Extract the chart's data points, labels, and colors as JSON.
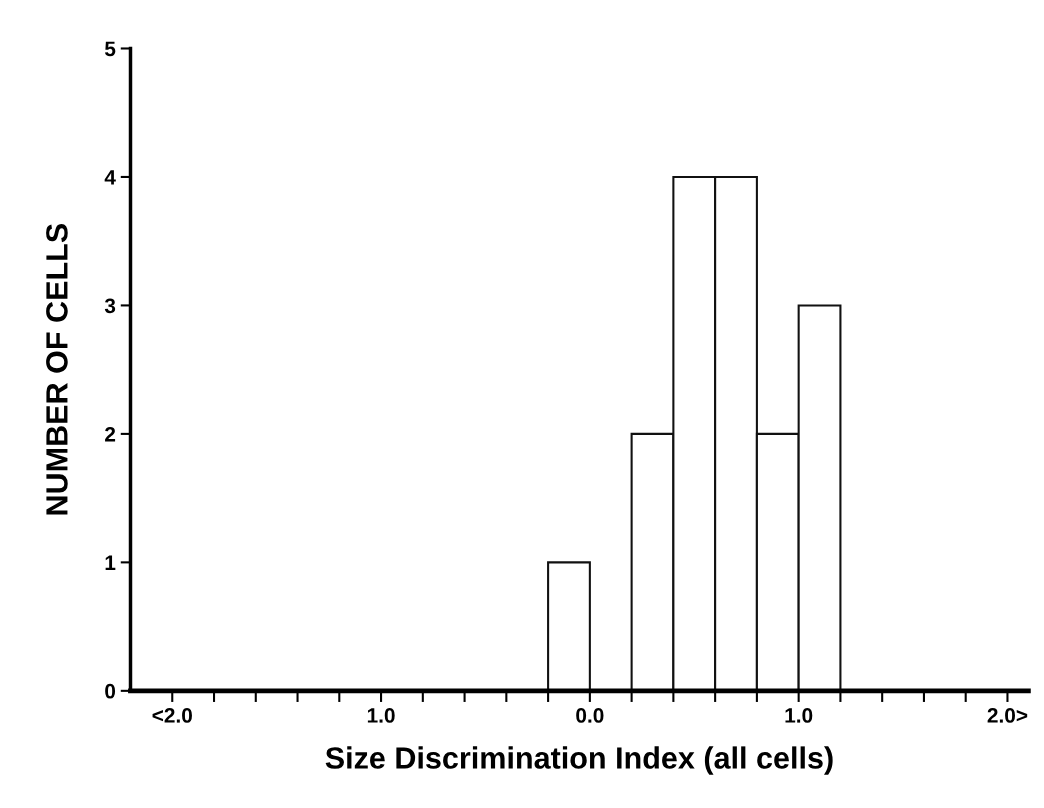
{
  "chart_data": {
    "type": "histogram",
    "xlabel": "Size Discrimination Index (all cells)",
    "ylabel": "NUMBER OF CELLS",
    "bins": [
      -0.2,
      0.0,
      0.2,
      0.4,
      0.6,
      0.8,
      1.0,
      1.2
    ],
    "values": [
      1,
      0,
      2,
      4,
      4,
      2,
      3
    ],
    "color": "#ffffff",
    "xlim": [
      -2.2,
      2.1
    ],
    "xticks": [
      {
        "value": -2.0,
        "label": "<2.0"
      },
      {
        "value": -1.8,
        "label": null
      },
      {
        "value": -1.6,
        "label": null
      },
      {
        "value": -1.4,
        "label": null
      },
      {
        "value": -1.2,
        "label": null
      },
      {
        "value": -1.0,
        "label": "1.0"
      },
      {
        "value": -0.8,
        "label": null
      },
      {
        "value": -0.6,
        "label": null
      },
      {
        "value": -0.4,
        "label": null
      },
      {
        "value": -0.2,
        "label": null
      },
      {
        "value": 0.0,
        "label": "0.0"
      },
      {
        "value": 0.2,
        "label": null
      },
      {
        "value": 0.4,
        "label": null
      },
      {
        "value": 0.6,
        "label": null
      },
      {
        "value": 0.8,
        "label": null
      },
      {
        "value": 1.0,
        "label": "1.0"
      },
      {
        "value": 1.2,
        "label": null
      },
      {
        "value": 1.4,
        "label": null
      },
      {
        "value": 1.6,
        "label": null
      },
      {
        "value": 1.8,
        "label": null
      },
      {
        "value": 2.0,
        "label": "2.0>"
      }
    ],
    "ylim": [
      0,
      5
    ],
    "yticks": [
      0,
      1,
      2,
      3,
      4,
      5
    ],
    "grid": false
  }
}
